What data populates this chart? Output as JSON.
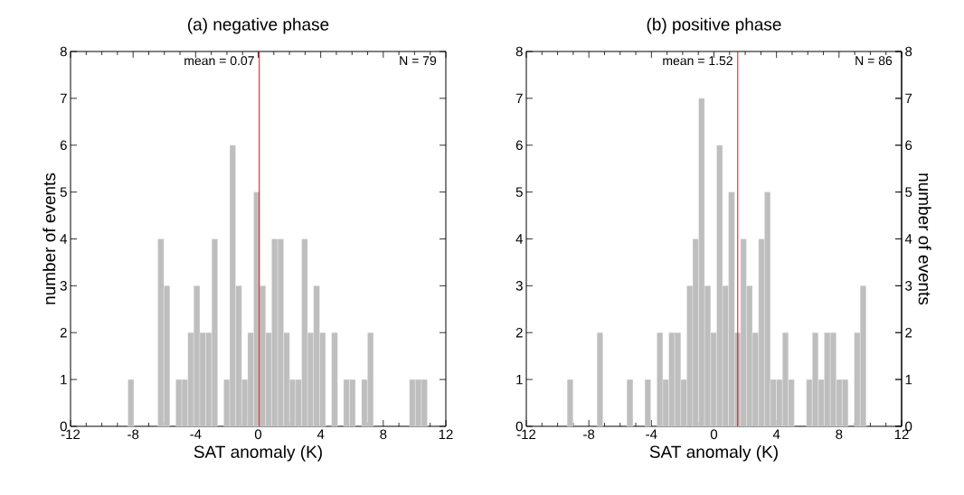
{
  "chart_data": [
    {
      "type": "histogram",
      "title": "(a) negative phase",
      "xlabel": "SAT anomaly (K)",
      "ylabel": "number of events",
      "color": "#bebebe",
      "bins": [
        -8.33,
        -7.95,
        -7.56,
        -7.18,
        -6.8,
        -6.42,
        -6.03,
        -5.65,
        -5.27,
        -4.88,
        -4.5,
        -4.12,
        -3.73,
        -3.35,
        -2.97,
        -2.59,
        -2.2,
        -1.82,
        -1.44,
        -1.05,
        -0.67,
        -0.29,
        0.1,
        0.48,
        0.86,
        1.25,
        1.63,
        2.01,
        2.39,
        2.78,
        3.16,
        3.54,
        3.93,
        4.31,
        4.69,
        5.08,
        5.46,
        5.84,
        6.22,
        6.61,
        6.99,
        7.37,
        7.76,
        8.14,
        8.52,
        8.91,
        9.29,
        9.67,
        10.05,
        10.44,
        10.82
      ],
      "values": [
        1,
        0,
        0,
        0,
        0,
        4,
        3,
        0,
        1,
        1,
        2,
        3,
        2,
        2,
        4,
        0,
        1,
        6,
        3,
        1,
        2,
        5,
        3,
        2,
        4,
        4,
        2,
        1,
        1,
        4,
        2,
        3,
        2,
        0,
        2,
        0,
        1,
        1,
        0,
        1,
        2,
        0,
        0,
        0,
        0,
        0,
        0,
        1,
        1,
        1
      ],
      "xlim": [
        -12,
        12
      ],
      "xticks": [
        -12,
        -8,
        -4,
        0,
        4,
        8,
        12
      ],
      "ylim": [
        0,
        8
      ],
      "yticks": [
        0,
        1,
        2,
        3,
        4,
        5,
        6,
        7,
        8
      ],
      "ref_lines": [
        {
          "axis": "x",
          "value": 0.07,
          "label": "mean = 0.07",
          "color": "#ff0000"
        }
      ],
      "annotations": [
        "N = 79"
      ]
    },
    {
      "type": "histogram",
      "title": "(b) positive phase",
      "xlabel": "SAT anomaly (K)",
      "y2label": "number of events",
      "color": "#bebebe",
      "bins": [
        -9.39,
        -9.01,
        -8.63,
        -8.24,
        -7.86,
        -7.48,
        -7.1,
        -6.71,
        -6.33,
        -5.95,
        -5.57,
        -5.18,
        -4.8,
        -4.42,
        -4.04,
        -3.65,
        -3.27,
        -2.89,
        -2.51,
        -2.12,
        -1.74,
        -1.36,
        -0.98,
        -0.6,
        -0.21,
        0.17,
        0.55,
        0.93,
        1.32,
        1.7,
        2.08,
        2.46,
        2.85,
        3.23,
        3.61,
        3.99,
        4.38,
        4.76,
        5.14,
        5.52,
        5.91,
        6.29,
        6.67,
        7.05,
        7.44,
        7.82,
        8.2,
        8.58,
        8.97,
        9.35,
        9.73
      ],
      "values": [
        1,
        0,
        0,
        0,
        0,
        2,
        0,
        0,
        0,
        0,
        1,
        0,
        0,
        1,
        0,
        2,
        1,
        2,
        2,
        1,
        3,
        4,
        7,
        3,
        2,
        6,
        3,
        5,
        2,
        4,
        3,
        2,
        4,
        5,
        1,
        1,
        2,
        1,
        0,
        0,
        1,
        2,
        1,
        2,
        2,
        1,
        1,
        0,
        2,
        3
      ],
      "xlim": [
        -12,
        12
      ],
      "xticks": [
        -12,
        -8,
        -4,
        0,
        4,
        8,
        12
      ],
      "ylim": [
        0,
        8
      ],
      "yticks": [
        0,
        1,
        2,
        3,
        4,
        5,
        6,
        7,
        8
      ],
      "y2lim": [
        0,
        8
      ],
      "y2ticks": [
        0,
        1,
        2,
        3,
        4,
        5,
        6,
        7,
        8
      ],
      "ref_lines": [
        {
          "axis": "x",
          "value": 1.52,
          "label": "mean = 1.52",
          "color": "#ff0000"
        }
      ],
      "annotations": [
        "N = 86"
      ]
    }
  ]
}
